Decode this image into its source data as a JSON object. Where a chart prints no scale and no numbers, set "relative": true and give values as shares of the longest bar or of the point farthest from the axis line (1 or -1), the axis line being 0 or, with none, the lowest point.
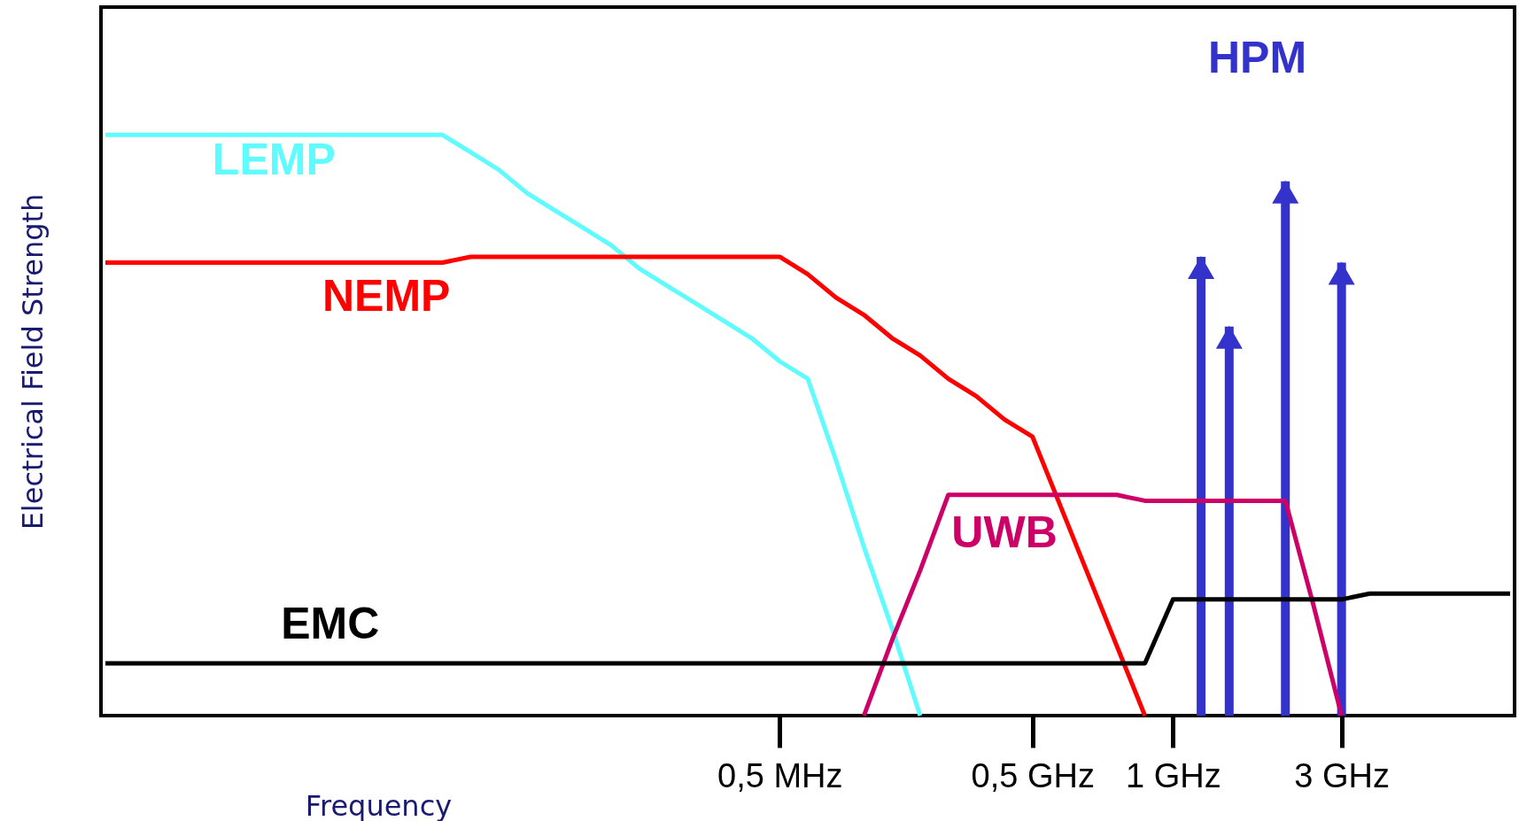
{
  "chart_data": {
    "type": "line",
    "relative": true,
    "xlabel": "Frequency",
    "ylabel": "Electrical Field Strength",
    "categories": [
      null,
      null,
      null,
      null,
      null,
      null,
      null,
      null,
      null,
      null,
      null,
      null,
      null,
      null,
      null,
      null,
      null,
      null,
      null,
      null,
      null,
      null,
      null,
      null,
      "0,5 MHz",
      null,
      null,
      null,
      null,
      null,
      null,
      null,
      null,
      "0,5 GHz",
      null,
      null,
      null,
      null,
      "1 GHz",
      null,
      null,
      null,
      null,
      null,
      "3 GHz",
      null,
      null,
      null,
      null,
      null,
      null
    ],
    "series": [
      {
        "name": "LEMP",
        "color": "#5ffbff",
        "values": [
          1,
          1,
          1,
          1,
          1,
          1,
          1,
          1,
          1,
          1,
          1,
          1,
          1,
          0.97,
          0.94,
          0.9,
          0.87,
          0.84,
          0.81,
          0.77,
          0.74,
          0.71,
          0.68,
          0.65,
          0.61,
          0.58,
          0.44,
          0.29,
          0.15,
          0,
          null,
          null,
          null,
          null,
          null,
          null,
          null,
          null,
          null,
          null,
          null,
          null,
          null,
          null,
          null,
          null,
          null,
          null,
          null,
          null,
          null
        ]
      },
      {
        "name": "NEMP",
        "color": "#ff0000",
        "values": [
          0.78,
          0.78,
          0.78,
          0.78,
          0.78,
          0.78,
          0.78,
          0.78,
          0.78,
          0.78,
          0.78,
          0.78,
          0.78,
          0.79,
          0.79,
          0.79,
          0.79,
          0.79,
          0.79,
          0.79,
          0.79,
          0.79,
          0.79,
          0.79,
          0.79,
          0.76,
          0.72,
          0.69,
          0.65,
          0.62,
          0.58,
          0.55,
          0.51,
          0.48,
          0.36,
          0.24,
          0.12,
          0,
          null,
          null,
          null,
          null,
          null,
          null,
          null,
          null,
          null,
          null,
          null,
          null,
          null
        ]
      },
      {
        "name": "UWB",
        "color": "#cc0066",
        "values": [
          null,
          null,
          null,
          null,
          null,
          null,
          null,
          null,
          null,
          null,
          null,
          null,
          null,
          null,
          null,
          null,
          null,
          null,
          null,
          null,
          null,
          null,
          null,
          null,
          null,
          null,
          null,
          0,
          0.13,
          0.25,
          0.38,
          0.38,
          0.38,
          0.38,
          0.38,
          0.38,
          0.38,
          0.37,
          0.37,
          0.37,
          0.37,
          0.37,
          0.37,
          0.19,
          0,
          null,
          null,
          null,
          null,
          null,
          null
        ]
      },
      {
        "name": "EMC",
        "color": "#000000",
        "values": [
          0.09,
          0.09,
          0.09,
          0.09,
          0.09,
          0.09,
          0.09,
          0.09,
          0.09,
          0.09,
          0.09,
          0.09,
          0.09,
          0.09,
          0.09,
          0.09,
          0.09,
          0.09,
          0.09,
          0.09,
          0.09,
          0.09,
          0.09,
          0.09,
          0.09,
          0.09,
          0.09,
          0.09,
          0.09,
          0.09,
          0.09,
          0.09,
          0.09,
          0.09,
          0.09,
          0.09,
          0.09,
          0.09,
          0.2,
          0.2,
          0.2,
          0.2,
          0.2,
          0.2,
          0.2,
          0.21,
          0.21,
          0.21,
          0.21,
          0.21,
          0.21
        ]
      },
      {
        "name": "HPM",
        "color": "#3333cc",
        "type": "bar",
        "values": [
          null,
          null,
          null,
          null,
          null,
          null,
          null,
          null,
          null,
          null,
          null,
          null,
          null,
          null,
          null,
          null,
          null,
          null,
          null,
          null,
          null,
          null,
          null,
          null,
          null,
          null,
          null,
          null,
          null,
          null,
          null,
          null,
          null,
          null,
          null,
          null,
          null,
          null,
          null,
          0.79,
          0.67,
          null,
          0.92,
          null,
          0.78,
          null,
          null,
          null,
          null,
          null,
          null
        ]
      }
    ]
  }
}
